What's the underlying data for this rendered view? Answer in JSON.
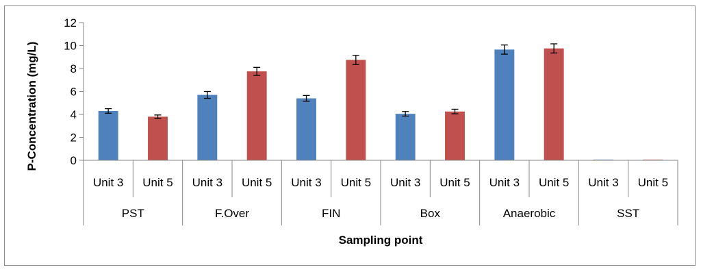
{
  "chart_data": {
    "type": "bar",
    "xlabel": "Sampling point",
    "ylabel": "P-Concentration (mg/L)",
    "ylim": [
      0,
      12
    ],
    "yticks": [
      0,
      2,
      4,
      6,
      8,
      10,
      12
    ],
    "grid": false,
    "legend": "none",
    "groups": [
      {
        "name": "PST",
        "bars": [
          {
            "label": "Unit 3",
            "value": 4.3,
            "error": 0.2,
            "color": "#4f81bd"
          },
          {
            "label": "Unit 5",
            "value": 3.8,
            "error": 0.15,
            "color": "#c0504d"
          }
        ]
      },
      {
        "name": "F.Over",
        "bars": [
          {
            "label": "Unit 3",
            "value": 5.7,
            "error": 0.3,
            "color": "#4f81bd"
          },
          {
            "label": "Unit 5",
            "value": 7.75,
            "error": 0.35,
            "color": "#c0504d"
          }
        ]
      },
      {
        "name": "FIN",
        "bars": [
          {
            "label": "Unit 3",
            "value": 5.4,
            "error": 0.25,
            "color": "#4f81bd"
          },
          {
            "label": "Unit 5",
            "value": 8.75,
            "error": 0.4,
            "color": "#c0504d"
          }
        ]
      },
      {
        "name": "Box",
        "bars": [
          {
            "label": "Unit 3",
            "value": 4.05,
            "error": 0.2,
            "color": "#4f81bd"
          },
          {
            "label": "Unit 5",
            "value": 4.25,
            "error": 0.2,
            "color": "#c0504d"
          }
        ]
      },
      {
        "name": "Anaerobic",
        "bars": [
          {
            "label": "Unit 3",
            "value": 9.65,
            "error": 0.4,
            "color": "#4f81bd"
          },
          {
            "label": "Unit 5",
            "value": 9.75,
            "error": 0.4,
            "color": "#c0504d"
          }
        ]
      },
      {
        "name": "SST",
        "bars": [
          {
            "label": "Unit 3",
            "value": 0.02,
            "error": 0.01,
            "color": "#4f81bd"
          },
          {
            "label": "Unit 5",
            "value": 0.03,
            "error": 0.01,
            "color": "#c0504d"
          }
        ]
      }
    ]
  }
}
